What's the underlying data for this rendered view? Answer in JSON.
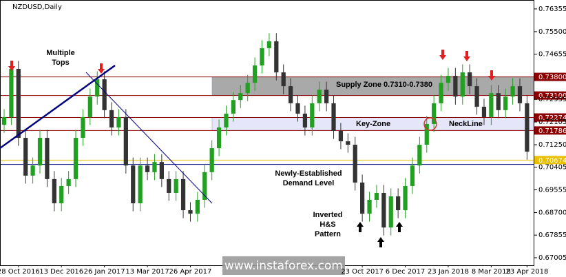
{
  "chart_data": {
    "type": "candlestick",
    "title": "NZDUSD,Daily",
    "categories": [
      null,
      null,
      "28 Oct 2016",
      null,
      null,
      null,
      null,
      null,
      "13 Dec 2016",
      null,
      null,
      null,
      null,
      null,
      "26 Jan 2017",
      null,
      null,
      null,
      null,
      null,
      "13 Mar 2017",
      null,
      null,
      null,
      null,
      null,
      "26 Apr 2017",
      null,
      null,
      null,
      null,
      null,
      null,
      null,
      null,
      null,
      null,
      null,
      null,
      null,
      null,
      null,
      null,
      null,
      null,
      null,
      null,
      null,
      null,
      null,
      "23 Oct 2017",
      null,
      null,
      null,
      null,
      null,
      "6 Dec 2017",
      null,
      null,
      null,
      null,
      null,
      "23 Jan 2018",
      null,
      null,
      null,
      null,
      null,
      "8 Mar 2018",
      null,
      null,
      null,
      null,
      "23 Apr 2018"
    ],
    "open": [
      0.72,
      0.7229,
      0.741,
      0.7151,
      0.7009,
      0.7047,
      0.7151,
      0.6996,
      0.6905,
      0.697,
      0.6996,
      0.7151,
      0.7229,
      0.7306,
      0.7371,
      0.7255,
      0.719,
      0.7229,
      0.7047,
      0.6905,
      0.7047,
      0.7022,
      0.706,
      0.6996,
      0.6944,
      0.6996,
      0.6879,
      0.6866,
      0.6918,
      0.7022,
      0.7112,
      0.719,
      0.7242,
      0.7293,
      0.7319,
      0.7358,
      0.7423,
      0.7488,
      0.7514,
      0.7397,
      0.7345,
      0.7281,
      0.7242,
      0.719,
      0.7281,
      0.7332,
      0.7281,
      0.7177,
      0.7138,
      0.7125,
      0.6983,
      0.6866,
      0.6918,
      0.6944,
      0.6814,
      0.6931,
      0.6879,
      0.697,
      0.7047,
      0.7125,
      0.7203,
      0.7281,
      0.7358,
      0.7384,
      0.7306,
      0.7397,
      0.7345,
      0.7268,
      0.7229,
      0.7319,
      0.7255,
      0.7306,
      0.7345,
      0.7281
    ],
    "high": [
      0.7259,
      0.744,
      0.744,
      0.7181,
      0.7077,
      0.7181,
      0.7181,
      0.7026,
      0.7,
      0.7026,
      0.7181,
      0.7259,
      0.7336,
      0.7401,
      0.7401,
      0.7285,
      0.7259,
      0.7259,
      0.7077,
      0.7077,
      0.7077,
      0.709,
      0.709,
      0.7026,
      0.7026,
      0.7026,
      0.6909,
      0.6948,
      0.7052,
      0.7142,
      0.722,
      0.7272,
      0.7323,
      0.7349,
      0.7388,
      0.7453,
      0.7518,
      0.7544,
      0.7544,
      0.7427,
      0.7375,
      0.7311,
      0.7272,
      0.7311,
      0.7362,
      0.7362,
      0.7311,
      0.7207,
      0.7168,
      0.7155,
      0.7013,
      0.6948,
      0.6974,
      0.6974,
      0.6961,
      0.6961,
      0.7,
      0.7077,
      0.7155,
      0.7233,
      0.7311,
      0.7388,
      0.7414,
      0.7414,
      0.7427,
      0.7427,
      0.7375,
      0.7298,
      0.7349,
      0.7349,
      0.7336,
      0.7375,
      0.7375,
      0.7311
    ],
    "low": [
      0.717,
      0.7199,
      0.7121,
      0.6979,
      0.6979,
      0.7017,
      0.6966,
      0.6875,
      0.6875,
      0.694,
      0.6966,
      0.7121,
      0.7199,
      0.7276,
      0.7225,
      0.716,
      0.716,
      0.7017,
      0.6875,
      0.6875,
      0.6992,
      0.6992,
      0.6966,
      0.6914,
      0.6914,
      0.6849,
      0.6836,
      0.6836,
      0.6888,
      0.6992,
      0.7082,
      0.716,
      0.7212,
      0.7263,
      0.7289,
      0.7328,
      0.7393,
      0.7458,
      0.7367,
      0.7315,
      0.7251,
      0.7212,
      0.716,
      0.716,
      0.7251,
      0.7251,
      0.7147,
      0.7108,
      0.7095,
      0.6953,
      0.6836,
      0.6836,
      0.6888,
      0.6784,
      0.6784,
      0.6849,
      0.6849,
      0.694,
      0.7017,
      0.7095,
      0.7173,
      0.7251,
      0.7328,
      0.7276,
      0.7276,
      0.7315,
      0.7238,
      0.7199,
      0.7199,
      0.7225,
      0.7225,
      0.7276,
      0.7251,
      0.7069
    ],
    "close": [
      0.7229,
      0.741,
      0.7151,
      0.7009,
      0.7047,
      0.7151,
      0.6996,
      0.6905,
      0.697,
      0.6996,
      0.7151,
      0.7229,
      0.7306,
      0.7371,
      0.7255,
      0.719,
      0.7229,
      0.7047,
      0.6905,
      0.7047,
      0.7022,
      0.706,
      0.6996,
      0.6944,
      0.6996,
      0.6879,
      0.6866,
      0.6918,
      0.7022,
      0.7112,
      0.719,
      0.7242,
      0.7293,
      0.7319,
      0.7358,
      0.7423,
      0.7488,
      0.7514,
      0.7397,
      0.7345,
      0.7281,
      0.7242,
      0.719,
      0.7281,
      0.7332,
      0.7281,
      0.7177,
      0.7138,
      0.7125,
      0.6983,
      0.6866,
      0.6918,
      0.6944,
      0.6814,
      0.6931,
      0.6879,
      0.697,
      0.7047,
      0.7125,
      0.7203,
      0.7281,
      0.7358,
      0.7384,
      0.7306,
      0.7397,
      0.7345,
      0.7268,
      0.7229,
      0.7319,
      0.7255,
      0.7306,
      0.7345,
      0.7281,
      0.7099
    ],
    "up_color": "#22a022",
    "down_color": "#333333",
    "ylim": [
      0.6672,
      0.7669
    ],
    "yticks": [
      0.76355,
      {
        "value": 0.755,
        "label": "0.75500"
      },
      0.74655,
      0.72955,
      0.72105,
      {
        "value": 0.7125,
        "label": "0.71250"
      },
      0.70405,
      0.69555,
      {
        "value": 0.687,
        "label": "0.68700"
      },
      0.67855,
      0.67005
    ],
    "levels": [
      {
        "value": 0.738,
        "label": "0.73800",
        "color": "#8b0000"
      },
      {
        "value": 0.731,
        "label": "0.73100",
        "color": "#8b0000"
      },
      {
        "value": 0.72274,
        "label": "0.72274",
        "color": "#8b0000"
      },
      {
        "value": 0.71786,
        "label": "0.71786",
        "color": "#8b0000"
      },
      {
        "value": 0.70674,
        "label": "0.70674",
        "color": "#e8c000"
      },
      {
        "value": 0.7051,
        "color": "#000080"
      }
    ],
    "zones": [
      {
        "from": 0.731,
        "to": 0.738,
        "label": "Supply Zone 0.7310-0.7380",
        "color": "#a9a9a9"
      },
      {
        "from": 0.71786,
        "to": 0.72274,
        "label": "Key-Zone",
        "color": "#e6e6fa"
      }
    ],
    "annotations": [
      "Multiple",
      "Tops",
      "NeckLine",
      "Newly-Established",
      "Demand Level",
      "Inverted",
      "H&S",
      "Pattern"
    ],
    "watermark": "www.instaforex.com"
  }
}
